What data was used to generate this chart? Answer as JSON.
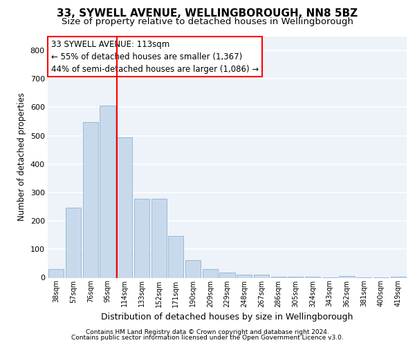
{
  "title1": "33, SYWELL AVENUE, WELLINGBOROUGH, NN8 5BZ",
  "title2": "Size of property relative to detached houses in Wellingborough",
  "xlabel": "Distribution of detached houses by size in Wellingborough",
  "ylabel": "Number of detached properties",
  "footer1": "Contains HM Land Registry data © Crown copyright and database right 2024.",
  "footer2": "Contains public sector information licensed under the Open Government Licence v3.0.",
  "annotation_line1": "33 SYWELL AVENUE: 113sqm",
  "annotation_line2": "← 55% of detached houses are smaller (1,367)",
  "annotation_line3": "44% of semi-detached houses are larger (1,086) →",
  "bar_labels": [
    "38sqm",
    "57sqm",
    "76sqm",
    "95sqm",
    "114sqm",
    "133sqm",
    "152sqm",
    "171sqm",
    "190sqm",
    "209sqm",
    "229sqm",
    "248sqm",
    "267sqm",
    "286sqm",
    "305sqm",
    "324sqm",
    "343sqm",
    "362sqm",
    "381sqm",
    "400sqm",
    "419sqm"
  ],
  "bar_values": [
    30,
    247,
    548,
    607,
    494,
    277,
    277,
    147,
    63,
    30,
    18,
    12,
    12,
    4,
    4,
    4,
    2,
    5,
    2,
    1,
    4
  ],
  "bar_color": "#c9d9ec",
  "bar_edge_color": "#8ab4cf",
  "marker_index": 4,
  "marker_color": "red",
  "ylim": [
    0,
    850
  ],
  "yticks": [
    0,
    100,
    200,
    300,
    400,
    500,
    600,
    700,
    800
  ],
  "bg_color": "#eef2f9",
  "grid_color": "#ffffff",
  "title1_fontsize": 11,
  "title2_fontsize": 9.5,
  "ylabel_fontsize": 8.5,
  "xlabel_fontsize": 9,
  "tick_fontsize": 8,
  "xtick_fontsize": 7,
  "annotation_fontsize": 8.5,
  "footer_fontsize": 6.5
}
